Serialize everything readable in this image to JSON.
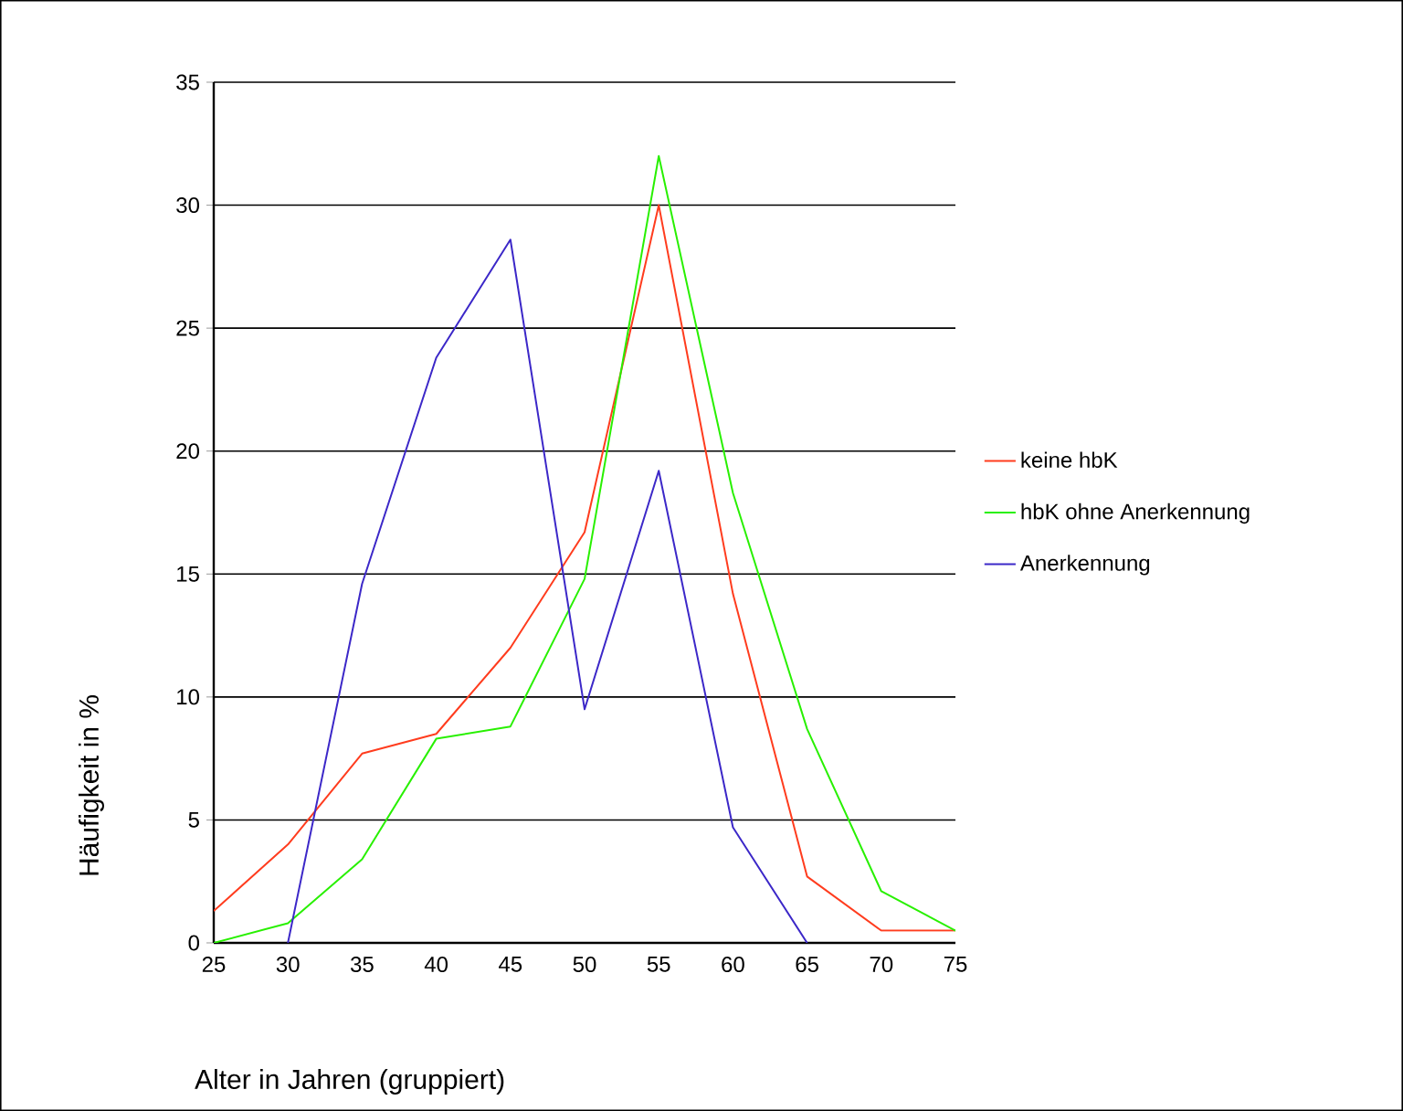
{
  "chart_data": {
    "type": "line",
    "xlabel": "Alter in Jahren (gruppiert)",
    "ylabel": "Häufigkeit in %",
    "x": [
      25,
      30,
      35,
      40,
      45,
      50,
      55,
      60,
      65,
      70,
      75
    ],
    "series": [
      {
        "name": "keine hbK",
        "color": "#ff3c1e",
        "values": [
          1.3,
          4,
          7.7,
          8.5,
          12,
          16.7,
          30,
          14.2,
          2.7,
          0.5,
          0.5
        ]
      },
      {
        "name": "hbK ohne Anerkennung",
        "color": "#28f000",
        "values": [
          0,
          0.8,
          3.4,
          8.3,
          8.8,
          14.8,
          32,
          18.3,
          8.7,
          2.1,
          0.5
        ]
      },
      {
        "name": "Anerkennung",
        "color": "#3c28c8",
        "values": [
          null,
          0,
          14.6,
          23.8,
          28.6,
          9.5,
          19.2,
          4.7,
          0,
          null,
          null
        ]
      }
    ],
    "xlim": [
      25,
      75
    ],
    "xticks": [
      25,
      30,
      35,
      40,
      45,
      50,
      55,
      60,
      65,
      70,
      75
    ],
    "ylim": [
      0,
      35
    ],
    "yticks": [
      0,
      5,
      10,
      15,
      20,
      25,
      30,
      35
    ],
    "grid": "y",
    "legend": "right",
    "marker": "none",
    "line_style": "solid"
  }
}
